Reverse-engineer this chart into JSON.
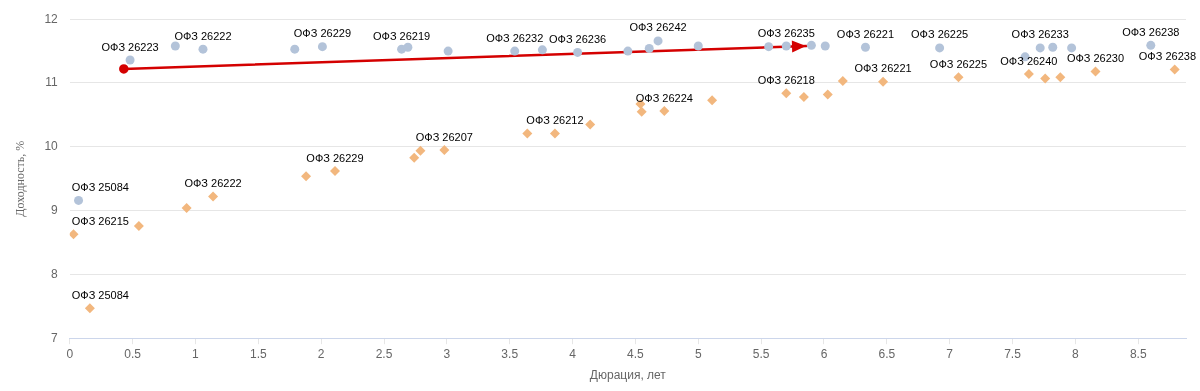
{
  "chart_data": {
    "type": "scatter",
    "xlabel": "Дюрация, лет",
    "ylabel": "Доходность, %",
    "xlim": [
      0,
      8.88
    ],
    "xticks": [
      0,
      0.5,
      1,
      1.5,
      2,
      2.5,
      3,
      3.5,
      4,
      4.5,
      5,
      5.5,
      6,
      6.5,
      7,
      7.5,
      8,
      8.5
    ],
    "ylim": [
      7,
      12
    ],
    "yticks": [
      7,
      8,
      9,
      10,
      11,
      12
    ],
    "grid": "y",
    "legend": false,
    "series": [
      {
        "marker": "circle",
        "color": "#b3c3d9",
        "x": [
          0.07,
          0.48,
          0.84,
          1.06,
          1.79,
          2.01,
          2.64,
          2.69,
          3.01,
          3.54,
          3.76,
          4.04,
          4.44,
          4.61,
          4.68,
          5.0,
          5.56,
          5.7,
          5.9,
          6.01,
          6.33,
          6.92,
          7.6,
          7.72,
          7.82,
          7.97,
          8.6
        ],
        "values": [
          9.16,
          11.36,
          11.58,
          11.53,
          11.53,
          11.57,
          11.53,
          11.56,
          11.5,
          11.5,
          11.52,
          11.48,
          11.5,
          11.54,
          11.66,
          11.58,
          11.57,
          11.58,
          11.59,
          11.58,
          11.56,
          11.55,
          11.41,
          11.55,
          11.56,
          11.55,
          11.59
        ]
      },
      {
        "marker": "diamond",
        "color": "#f2b77e",
        "x": [
          0.03,
          0.16,
          0.55,
          0.93,
          1.14,
          1.88,
          2.11,
          2.74,
          2.79,
          2.98,
          3.64,
          3.86,
          4.14,
          4.54,
          4.55,
          4.73,
          5.11,
          5.7,
          5.84,
          6.03,
          6.15,
          6.47,
          7.07,
          7.63,
          7.76,
          7.88,
          8.16,
          8.79
        ],
        "values": [
          8.63,
          7.47,
          8.76,
          9.04,
          9.22,
          9.54,
          9.62,
          9.83,
          9.94,
          9.95,
          10.21,
          10.21,
          10.35,
          10.67,
          10.55,
          10.56,
          10.73,
          10.84,
          10.78,
          10.82,
          11.03,
          11.02,
          11.09,
          11.14,
          11.07,
          11.09,
          11.18,
          11.21
        ]
      },
      {
        "type": "line",
        "marker": "circle",
        "color": "#d40000",
        "x": [
          0.43,
          5.86
        ],
        "values": [
          11.22,
          11.58
        ]
      }
    ],
    "annotations": [
      {
        "text": "ОФЗ 25084",
        "x": 0.07,
        "y": 9.16
      },
      {
        "text": "ОФЗ 26223",
        "x": 0.48,
        "y": 11.36
      },
      {
        "text": "ОФЗ 26222",
        "x": 1.06,
        "y": 11.53
      },
      {
        "text": "ОФЗ 26229",
        "x": 2.01,
        "y": 11.57
      },
      {
        "text": "ОФЗ 26219",
        "x": 2.64,
        "y": 11.53
      },
      {
        "text": "ОФЗ 26232",
        "x": 3.54,
        "y": 11.5
      },
      {
        "text": "ОФЗ 26236",
        "x": 4.04,
        "y": 11.48
      },
      {
        "text": "ОФЗ 26242",
        "x": 4.68,
        "y": 11.66
      },
      {
        "text": "ОФЗ 26235",
        "x": 5.7,
        "y": 11.58
      },
      {
        "text": "ОФЗ 26221",
        "x": 6.33,
        "y": 11.56
      },
      {
        "text": "ОФЗ 26225",
        "x": 6.92,
        "y": 11.55
      },
      {
        "text": "ОФЗ 26233",
        "x": 7.72,
        "y": 11.55
      },
      {
        "text": "ОФЗ 26238",
        "x": 8.6,
        "y": 11.59
      },
      {
        "text": "ОФЗ 26215",
        "x": 0.03,
        "y": 8.63
      },
      {
        "text": "ОФЗ 25084",
        "x": 0.16,
        "y": 7.47
      },
      {
        "text": "ОФЗ 26222",
        "x": 1.14,
        "y": 9.22
      },
      {
        "text": "ОФЗ 26229",
        "x": 2.11,
        "y": 9.62
      },
      {
        "text": "ОФЗ 26207",
        "x": 2.98,
        "y": 9.95
      },
      {
        "text": "ОФЗ 26212",
        "x": 3.86,
        "y": 10.21
      },
      {
        "text": "ОФЗ 26224",
        "x": 4.73,
        "y": 10.56
      },
      {
        "text": "ОФЗ 26218",
        "x": 5.7,
        "y": 10.84
      },
      {
        "text": "ОФЗ 26221",
        "x": 6.47,
        "y": 11.02
      },
      {
        "text": "ОФЗ 26225",
        "x": 7.07,
        "y": 11.09
      },
      {
        "text": "ОФЗ 26240",
        "x": 7.63,
        "y": 11.14
      },
      {
        "text": "ОФЗ 26230",
        "x": 8.16,
        "y": 11.18
      },
      {
        "text": "ОФЗ 26238",
        "x": 8.79,
        "y": 11.21
      }
    ]
  }
}
